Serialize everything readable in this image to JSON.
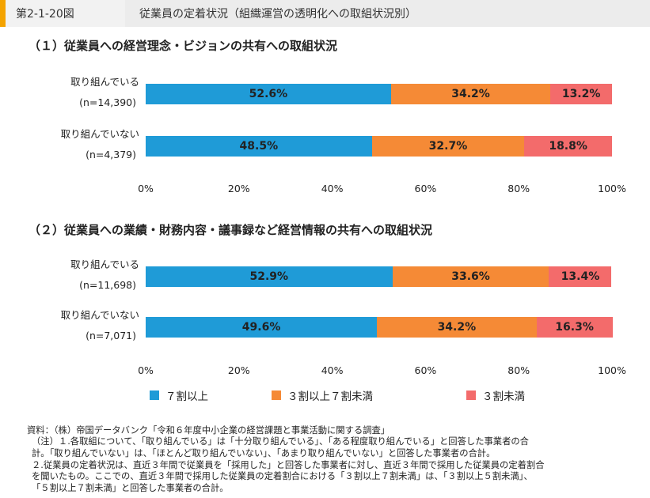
{
  "header": {
    "figure_number": "第2-1-20図",
    "figure_title": "従業員の定着状況（組織運営の透明化への取組状況別）"
  },
  "colors": {
    "series1": "#1f9bd7",
    "series2": "#f58a36",
    "series3": "#f36b6b"
  },
  "chart_data": [
    {
      "type": "bar",
      "orientation": "horizontal",
      "stacked": true,
      "title": "（１）従業員への経営理念・ビジョンの共有への取組状況",
      "categories": [
        {
          "name": "取り組んでいる",
          "n": "(n=14,390)"
        },
        {
          "name": "取り組んでいない",
          "n": "(n=4,379)"
        }
      ],
      "series": [
        {
          "name": "７割以上",
          "values": [
            52.6,
            48.5
          ],
          "labels": [
            "52.6%",
            "48.5%"
          ]
        },
        {
          "name": "３割以上７割未満",
          "values": [
            34.2,
            32.7
          ],
          "labels": [
            "34.2%",
            "32.7%"
          ]
        },
        {
          "name": "３割未満",
          "values": [
            13.2,
            18.8
          ],
          "labels": [
            "13.2%",
            "18.8%"
          ]
        }
      ],
      "xlim": [
        0,
        100
      ],
      "xticks": [
        "0%",
        "20%",
        "40%",
        "60%",
        "80%",
        "100%"
      ]
    },
    {
      "type": "bar",
      "orientation": "horizontal",
      "stacked": true,
      "title": "（２）従業員への業績・財務内容・議事録など経営情報の共有への取組状況",
      "categories": [
        {
          "name": "取り組んでいる",
          "n": "(n=11,698)"
        },
        {
          "name": "取り組んでいない",
          "n": "(n=7,071)"
        }
      ],
      "series": [
        {
          "name": "７割以上",
          "values": [
            52.9,
            49.6
          ],
          "labels": [
            "52.9%",
            "49.6%"
          ]
        },
        {
          "name": "３割以上７割未満",
          "values": [
            33.6,
            34.2
          ],
          "labels": [
            "33.6%",
            "34.2%"
          ]
        },
        {
          "name": "３割未満",
          "values": [
            13.4,
            16.3
          ],
          "labels": [
            "13.4%",
            "16.3%"
          ]
        }
      ],
      "xlim": [
        0,
        100
      ],
      "xticks": [
        "0%",
        "20%",
        "40%",
        "60%",
        "80%",
        "100%"
      ]
    }
  ],
  "legend": [
    "７割以上",
    "３割以上７割未満",
    "３割未満"
  ],
  "notes": [
    "資料：（株）帝国データバンク「令和６年度中小企業の経営課題と事業活動に関する調査」",
    "（注）１.各取組について、「取り組んでいる」は「十分取り組んでいる」、「ある程度取り組んでいる」と回答した事業者の合",
    "計。「取り組んでいない」は、「ほとんど取り組んでいない」、「あまり取り組んでいない」と回答した事業者の合計。",
    "２.従業員の定着状況は、直近３年間で従業員を「採用した」と回答した事業者に対し、直近３年間で採用した従業員の定着割合",
    "を聞いたもの。ここでの、直近３年間で採用した従業員の定着割合における「３割以上７割未満」は、「３割以上５割未満」、",
    "「５割以上７割未満」と回答した事業者の合計。"
  ]
}
